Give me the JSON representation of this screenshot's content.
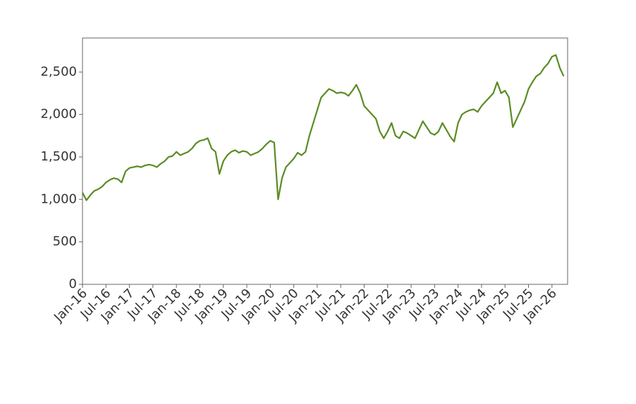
{
  "chart_data": {
    "type": "line",
    "x": [
      "2016-01",
      "2016-02",
      "2016-03",
      "2016-04",
      "2016-05",
      "2016-06",
      "2016-07",
      "2016-08",
      "2016-09",
      "2016-10",
      "2016-11",
      "2016-12",
      "2017-01",
      "2017-02",
      "2017-03",
      "2017-04",
      "2017-05",
      "2017-06",
      "2017-07",
      "2017-08",
      "2017-09",
      "2017-10",
      "2017-11",
      "2017-12",
      "2018-01",
      "2018-02",
      "2018-03",
      "2018-04",
      "2018-05",
      "2018-06",
      "2018-07",
      "2018-08",
      "2018-09",
      "2018-10",
      "2018-11",
      "2018-12",
      "2019-01",
      "2019-02",
      "2019-03",
      "2019-04",
      "2019-05",
      "2019-06",
      "2019-07",
      "2019-08",
      "2019-09",
      "2019-10",
      "2019-11",
      "2019-12",
      "2020-01",
      "2020-02",
      "2020-03",
      "2020-04",
      "2020-05",
      "2020-06",
      "2020-07",
      "2020-08",
      "2020-09",
      "2020-10",
      "2020-11",
      "2020-12",
      "2021-01",
      "2021-02",
      "2021-03",
      "2021-04",
      "2021-05",
      "2021-06",
      "2021-07",
      "2021-08",
      "2021-09",
      "2021-10",
      "2021-11",
      "2021-12",
      "2022-01",
      "2022-02",
      "2022-03",
      "2022-04",
      "2022-05",
      "2022-06",
      "2022-07",
      "2022-08",
      "2022-09",
      "2022-10",
      "2022-11",
      "2022-12",
      "2023-01",
      "2023-02",
      "2023-03",
      "2023-04",
      "2023-05",
      "2023-06",
      "2023-07",
      "2023-08",
      "2023-09",
      "2023-10",
      "2023-11",
      "2023-12",
      "2024-01",
      "2024-02",
      "2024-03",
      "2024-04",
      "2024-05",
      "2024-06",
      "2024-07",
      "2024-08",
      "2024-09",
      "2024-10",
      "2024-11",
      "2024-12",
      "2025-01",
      "2025-02",
      "2025-03",
      "2025-04",
      "2025-05",
      "2025-06",
      "2025-07",
      "2025-08",
      "2025-09",
      "2025-10",
      "2025-11",
      "2025-12",
      "2026-01",
      "2026-02",
      "2026-03",
      "2026-04"
    ],
    "series": [
      {
        "color": "#5a8c23",
        "values": [
          1080,
          990,
          1050,
          1100,
          1120,
          1150,
          1200,
          1230,
          1250,
          1240,
          1200,
          1330,
          1370,
          1380,
          1390,
          1380,
          1400,
          1410,
          1400,
          1380,
          1420,
          1450,
          1500,
          1510,
          1560,
          1520,
          1540,
          1560,
          1600,
          1660,
          1690,
          1700,
          1720,
          1600,
          1560,
          1300,
          1450,
          1520,
          1560,
          1580,
          1550,
          1570,
          1560,
          1520,
          1540,
          1560,
          1600,
          1650,
          1690,
          1670,
          1000,
          1250,
          1380,
          1430,
          1480,
          1550,
          1520,
          1560,
          1750,
          1900,
          2050,
          2200,
          2250,
          2300,
          2280,
          2250,
          2260,
          2250,
          2220,
          2280,
          2350,
          2250,
          2100,
          2050,
          2000,
          1950,
          1800,
          1720,
          1800,
          1900,
          1750,
          1720,
          1800,
          1780,
          1750,
          1720,
          1820,
          1920,
          1850,
          1780,
          1760,
          1800,
          1900,
          1820,
          1740,
          1680,
          1900,
          2000,
          2030,
          2050,
          2060,
          2030,
          2100,
          2150,
          2200,
          2250,
          2380,
          2250,
          2280,
          2200,
          1850,
          1950,
          2050,
          2150,
          2300,
          2380,
          2450,
          2480,
          2550,
          2600,
          2680,
          2700,
          2550,
          2450
        ]
      }
    ],
    "xlim": [
      "2016-01",
      "2026-05"
    ],
    "xticks": [
      {
        "value": "2016-01",
        "label": "Jan-16"
      },
      {
        "value": "2016-07",
        "label": "Jul-16"
      },
      {
        "value": "2017-01",
        "label": "Jan-17"
      },
      {
        "value": "2017-07",
        "label": "Jul-17"
      },
      {
        "value": "2018-01",
        "label": "Jan-18"
      },
      {
        "value": "2018-07",
        "label": "Jul-18"
      },
      {
        "value": "2019-01",
        "label": "Jan-19"
      },
      {
        "value": "2019-07",
        "label": "Jul-19"
      },
      {
        "value": "2020-01",
        "label": "Jan-20"
      },
      {
        "value": "2020-07",
        "label": "Jul-20"
      },
      {
        "value": "2021-01",
        "label": "Jan-21"
      },
      {
        "value": "2021-07",
        "label": "Jul-21"
      },
      {
        "value": "2022-01",
        "label": "Jan-22"
      },
      {
        "value": "2022-07",
        "label": "Jul-22"
      },
      {
        "value": "2023-01",
        "label": "Jan-23"
      },
      {
        "value": "2023-07",
        "label": "Jul-23"
      },
      {
        "value": "2024-01",
        "label": "Jan-24"
      },
      {
        "value": "2024-07",
        "label": "Jul-24"
      },
      {
        "value": "2025-01",
        "label": "Jan-25"
      },
      {
        "value": "2025-07",
        "label": "Jul-25"
      },
      {
        "value": "2026-01",
        "label": "Jan-26"
      }
    ],
    "ylim": [
      0,
      2900
    ],
    "yticks": [
      0,
      {
        "value": 500,
        "label": "500"
      },
      {
        "value": 1000,
        "label": "1,000"
      },
      {
        "value": 1500,
        "label": "1,500"
      },
      {
        "value": 2000,
        "label": "2,000"
      },
      {
        "value": 2500,
        "label": "2,500"
      }
    ],
    "grid": false
  }
}
